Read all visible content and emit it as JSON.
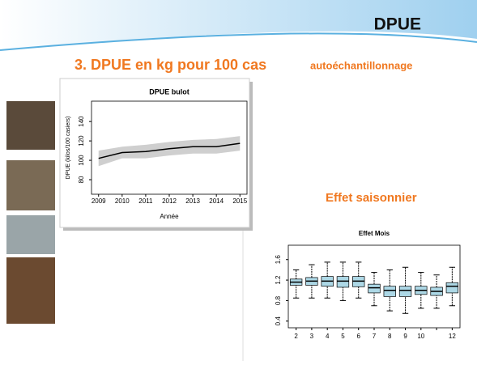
{
  "slide": {
    "header": "DPUE",
    "title": "3. DPUE  en kg pour 100 cas",
    "title_suffix": "autoéchantillonnage",
    "section": "Effet saisonnier"
  },
  "chart_data": [
    {
      "type": "line",
      "title": "DPUE bulot",
      "y_label": "DPUE (kilos/100 casiers)",
      "x_label": "Année",
      "x": [
        2009,
        2010,
        2011,
        2012,
        2013,
        2014,
        2015
      ],
      "series": [
        {
          "color": "#000000",
          "values": [
            102,
            108,
            109,
            112,
            114,
            114,
            117.5
          ]
        }
      ],
      "band_lower": [
        94,
        102,
        102,
        105,
        107,
        107,
        110
      ],
      "band_upper": [
        110,
        114,
        116,
        119,
        121,
        122,
        125
      ],
      "band_color": "#cfcfcf",
      "xlim": [
        2008.7,
        2015.3
      ],
      "xticks": [
        2009,
        2010,
        2011,
        2012,
        2013,
        2014,
        2015
      ],
      "ylim": [
        65,
        161
      ],
      "yticks": [
        80,
        100,
        120,
        140
      ]
    },
    {
      "type": "box",
      "title": "Effet Mois",
      "categories": [
        "2",
        "3",
        "4",
        "5",
        "6",
        "7",
        "8",
        "9",
        "10",
        null,
        "12"
      ],
      "color": "#add8e6",
      "whisker_low": [
        0.85,
        0.85,
        0.85,
        0.8,
        0.85,
        0.7,
        0.6,
        0.55,
        0.65,
        0.65,
        0.7
      ],
      "q1": [
        1.1,
        1.1,
        1.08,
        1.06,
        1.07,
        0.95,
        0.88,
        0.88,
        0.92,
        0.9,
        0.95
      ],
      "median": [
        1.16,
        1.18,
        1.18,
        1.18,
        1.18,
        1.05,
        1.0,
        1.0,
        1.0,
        0.98,
        1.08
      ],
      "q3": [
        1.22,
        1.25,
        1.27,
        1.27,
        1.27,
        1.12,
        1.08,
        1.08,
        1.08,
        1.06,
        1.15
      ],
      "whisker_high": [
        1.4,
        1.5,
        1.55,
        1.55,
        1.55,
        1.35,
        1.4,
        1.45,
        1.35,
        1.3,
        1.45
      ],
      "ylim": [
        0.27,
        1.88
      ],
      "yticks": [
        0.4,
        0.8,
        1.2,
        1.6
      ]
    }
  ]
}
